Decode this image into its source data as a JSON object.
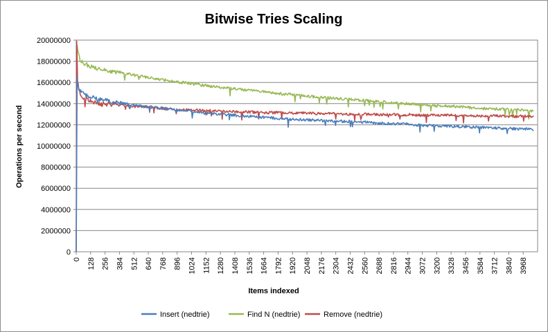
{
  "chart_data": {
    "type": "line",
    "title": "Bitwise Tries Scaling",
    "xlabel": "Items indexed",
    "ylabel": "Operations per second",
    "xlim": [
      0,
      4096
    ],
    "ylim": [
      0,
      20000000
    ],
    "y_ticks": [
      0,
      2000000,
      4000000,
      6000000,
      8000000,
      10000000,
      12000000,
      14000000,
      16000000,
      18000000,
      20000000
    ],
    "x_ticks": [
      0,
      128,
      256,
      384,
      512,
      640,
      768,
      896,
      1024,
      1152,
      1280,
      1408,
      1536,
      1664,
      1792,
      1920,
      2048,
      2176,
      2304,
      2432,
      2560,
      2688,
      2816,
      2944,
      3072,
      3200,
      3328,
      3456,
      3584,
      3712,
      3840,
      3968
    ],
    "grid": {
      "horizontal": true,
      "vertical": false
    },
    "legend_position": "bottom",
    "series": [
      {
        "name": "Insert (nedtrie)",
        "color": "#4a7ebb",
        "x": [
          0,
          8,
          16,
          32,
          64,
          128,
          256,
          384,
          512,
          640,
          768,
          896,
          1024,
          1152,
          1280,
          1408,
          1536,
          1664,
          1792,
          1920,
          2048,
          2176,
          2304,
          2432,
          2560,
          2688,
          2816,
          2944,
          3072,
          3200,
          3328,
          3456,
          3584,
          3712,
          3840,
          3968,
          4064
        ],
        "values": [
          0,
          16500000,
          15600000,
          15200000,
          14900000,
          14600000,
          14300000,
          14050000,
          13850000,
          13700000,
          13550000,
          13400000,
          13300000,
          13100000,
          13000000,
          12900000,
          12800000,
          12700000,
          12600000,
          12500000,
          12450000,
          12400000,
          12350000,
          12300000,
          12250000,
          12150000,
          12100000,
          12050000,
          11950000,
          11900000,
          11850000,
          11800000,
          11750000,
          11700000,
          11650000,
          11600000,
          11550000
        ]
      },
      {
        "name": "Find N (nedtrie)",
        "color": "#98b954",
        "x": [
          0,
          8,
          16,
          32,
          64,
          128,
          256,
          384,
          512,
          640,
          768,
          896,
          1024,
          1152,
          1280,
          1408,
          1536,
          1664,
          1792,
          1920,
          2048,
          2176,
          2304,
          2432,
          2560,
          2688,
          2816,
          2944,
          3072,
          3200,
          3328,
          3456,
          3584,
          3712,
          3840,
          3968,
          4064
        ],
        "values": [
          0,
          19500000,
          18800000,
          18200000,
          17800000,
          17500000,
          17200000,
          16900000,
          16700000,
          16450000,
          16250000,
          16050000,
          15900000,
          15700000,
          15550000,
          15400000,
          15250000,
          15100000,
          14950000,
          14850000,
          14700000,
          14600000,
          14500000,
          14400000,
          14300000,
          14200000,
          14100000,
          14000000,
          13900000,
          13800000,
          13750000,
          13650000,
          13550000,
          13500000,
          13450000,
          13350000,
          13300000
        ]
      },
      {
        "name": "Remove (nedtrie)",
        "color": "#be4b48",
        "x": [
          0,
          4,
          12,
          32,
          64,
          128,
          256,
          384,
          512,
          640,
          768,
          896,
          1024,
          1152,
          1280,
          1408,
          1536,
          1664,
          1792,
          1920,
          2048,
          2176,
          2304,
          2432,
          2560,
          2688,
          2816,
          2944,
          3072,
          3200,
          3328,
          3456,
          3584,
          3712,
          3840,
          3968,
          4064
        ],
        "values": [
          0,
          19900000,
          16000000,
          15000000,
          14600000,
          14200000,
          13950000,
          13850000,
          13750000,
          13650000,
          13550000,
          13450000,
          13400000,
          13350000,
          13300000,
          13250000,
          13200000,
          13150000,
          13150000,
          13100000,
          13100000,
          13050000,
          13050000,
          13000000,
          13000000,
          12950000,
          12950000,
          12950000,
          12900000,
          12900000,
          12900000,
          12850000,
          12850000,
          12850000,
          12800000,
          12800000,
          12800000
        ]
      }
    ]
  }
}
